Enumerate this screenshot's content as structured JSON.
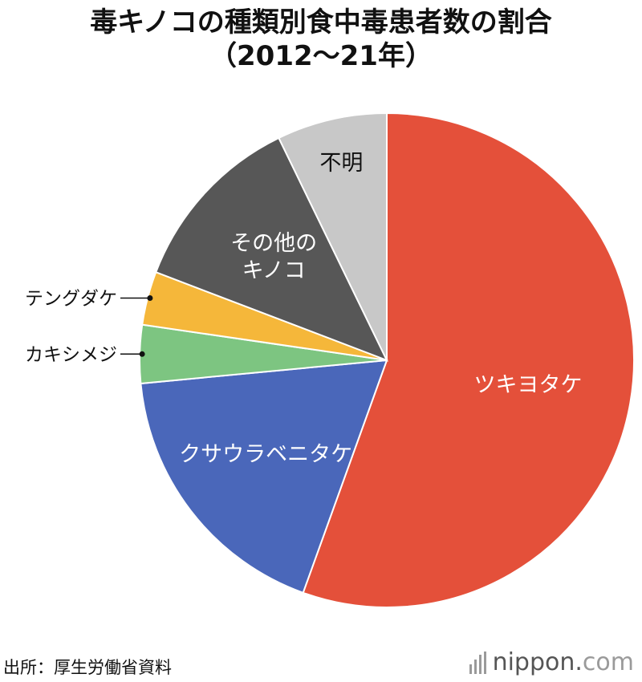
{
  "title": {
    "line1": "毒キノコの種類別食中毒患者数の割合",
    "line2": "（2012〜21年）"
  },
  "source": "出所：厚生労働省資料",
  "brand": {
    "name": "nippon",
    "dot": ".",
    "domain": "com",
    "logo": "bars-icon"
  },
  "chart_data": {
    "type": "pie",
    "title": "毒キノコの種類別食中毒患者数の割合（2012〜21年）",
    "start_angle": "12 o'clock",
    "direction": "clockwise",
    "unit": "share (%)",
    "slices": [
      {
        "label": "ツキヨタケ",
        "value": 55.5,
        "color": "#E4503A",
        "label_lines": [
          "ツキヨタケ"
        ],
        "label_placement": "inside"
      },
      {
        "label": "クサウラベニタケ",
        "value": 18.0,
        "color": "#4A67BA",
        "label_lines": [
          "クサウラベニタケ"
        ],
        "label_placement": "inside"
      },
      {
        "label": "カキシメジ",
        "value": 3.8,
        "color": "#7DC581",
        "label_lines": [
          "カキシメジ"
        ],
        "label_placement": "outside-left"
      },
      {
        "label": "テングダケ",
        "value": 3.5,
        "color": "#F5B73A",
        "label_lines": [
          "テングダケ"
        ],
        "label_placement": "outside-left"
      },
      {
        "label": "その他のキノコ",
        "value": 12.0,
        "color": "#575757",
        "label_lines": [
          "その他の",
          "キノコ"
        ],
        "label_placement": "inside"
      },
      {
        "label": "不明",
        "value": 7.2,
        "color": "#C8C8C8",
        "label_lines": [
          "不明"
        ],
        "label_placement": "inside",
        "label_dark": true
      }
    ]
  }
}
